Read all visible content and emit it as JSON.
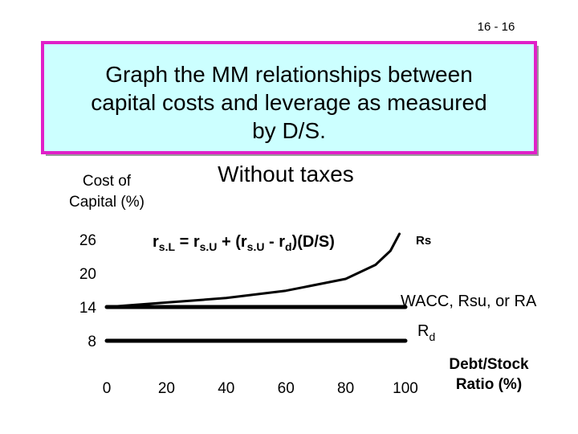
{
  "slide_number": "16 - 16",
  "heading": [
    "Graph the MM relationships between",
    "capital costs and leverage as measured",
    "by D/S."
  ],
  "chart_data": {
    "type": "line",
    "title": "Without taxes",
    "y_label": [
      "Cost of",
      "Capital (%)"
    ],
    "x_label": [
      "Debt/Stock",
      "Ratio (%)"
    ],
    "xlim": [
      0,
      100
    ],
    "ylim": [
      8,
      28
    ],
    "xticks": [
      0,
      20,
      40,
      60,
      80,
      100
    ],
    "yticks": [
      26,
      20,
      14,
      8
    ],
    "series": [
      {
        "x": [
          0,
          20,
          40,
          60,
          80,
          90,
          95,
          98
        ],
        "values": [
          14,
          14.8,
          15.6,
          16.9,
          19,
          21.5,
          24,
          27
        ],
        "color": "#000000"
      },
      {
        "x": [
          0,
          100
        ],
        "values": [
          14,
          14
        ],
        "color": "#000000"
      },
      {
        "x": [
          0,
          100
        ],
        "values": [
          8,
          8
        ],
        "color": "#000000"
      }
    ],
    "annotations": {
      "formula": [
        "r",
        "s.L",
        " = r",
        "s.U",
        " + (r",
        "s.U",
        " - r",
        "d",
        ")(D/S)"
      ],
      "rs": "Rs",
      "wacc": "WACC, Rsu, or RA",
      "rd": [
        "R",
        "d"
      ]
    }
  }
}
